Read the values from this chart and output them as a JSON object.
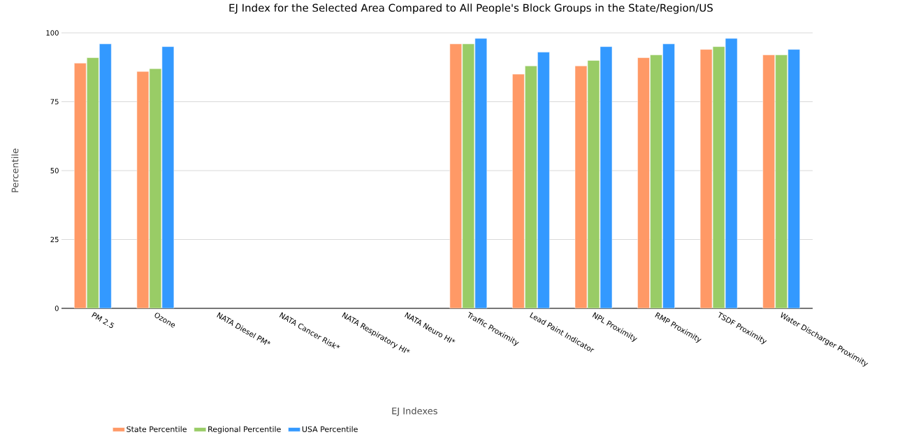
{
  "chart_data": {
    "type": "bar",
    "title": "EJ Index for the Selected Area Compared to All People's Block Groups in the State/Region/US",
    "xlabel": "EJ Indexes",
    "ylabel": "Percentile",
    "categories": [
      "PM 2.5",
      "Ozone",
      "NATA Diesel PM*",
      "NATA Cancer Risk*",
      "NATA Respiratory HI*",
      "NATA Neuro HI*",
      "Traffic Proximity",
      "Lead Paint Indicator",
      "NPL Proximity",
      "RMP Proximity",
      "TSDF Proximity",
      "Water Discharger Proximity"
    ],
    "series": [
      {
        "name": "State Percentile",
        "color": "#ff9966",
        "values": [
          89,
          86,
          null,
          null,
          null,
          null,
          96,
          85,
          88,
          91,
          94,
          92
        ]
      },
      {
        "name": "Regional Percentile",
        "color": "#99cc66",
        "values": [
          91,
          87,
          null,
          null,
          null,
          null,
          96,
          88,
          90,
          92,
          95,
          92
        ]
      },
      {
        "name": "USA Percentile",
        "color": "#3399ff",
        "values": [
          96,
          95,
          null,
          null,
          null,
          null,
          98,
          93,
          95,
          96,
          98,
          94
        ]
      }
    ],
    "ylim": [
      0,
      100
    ],
    "yticks": [
      0,
      25,
      50,
      75,
      100
    ],
    "grid": "y",
    "legend": "bottom left"
  }
}
